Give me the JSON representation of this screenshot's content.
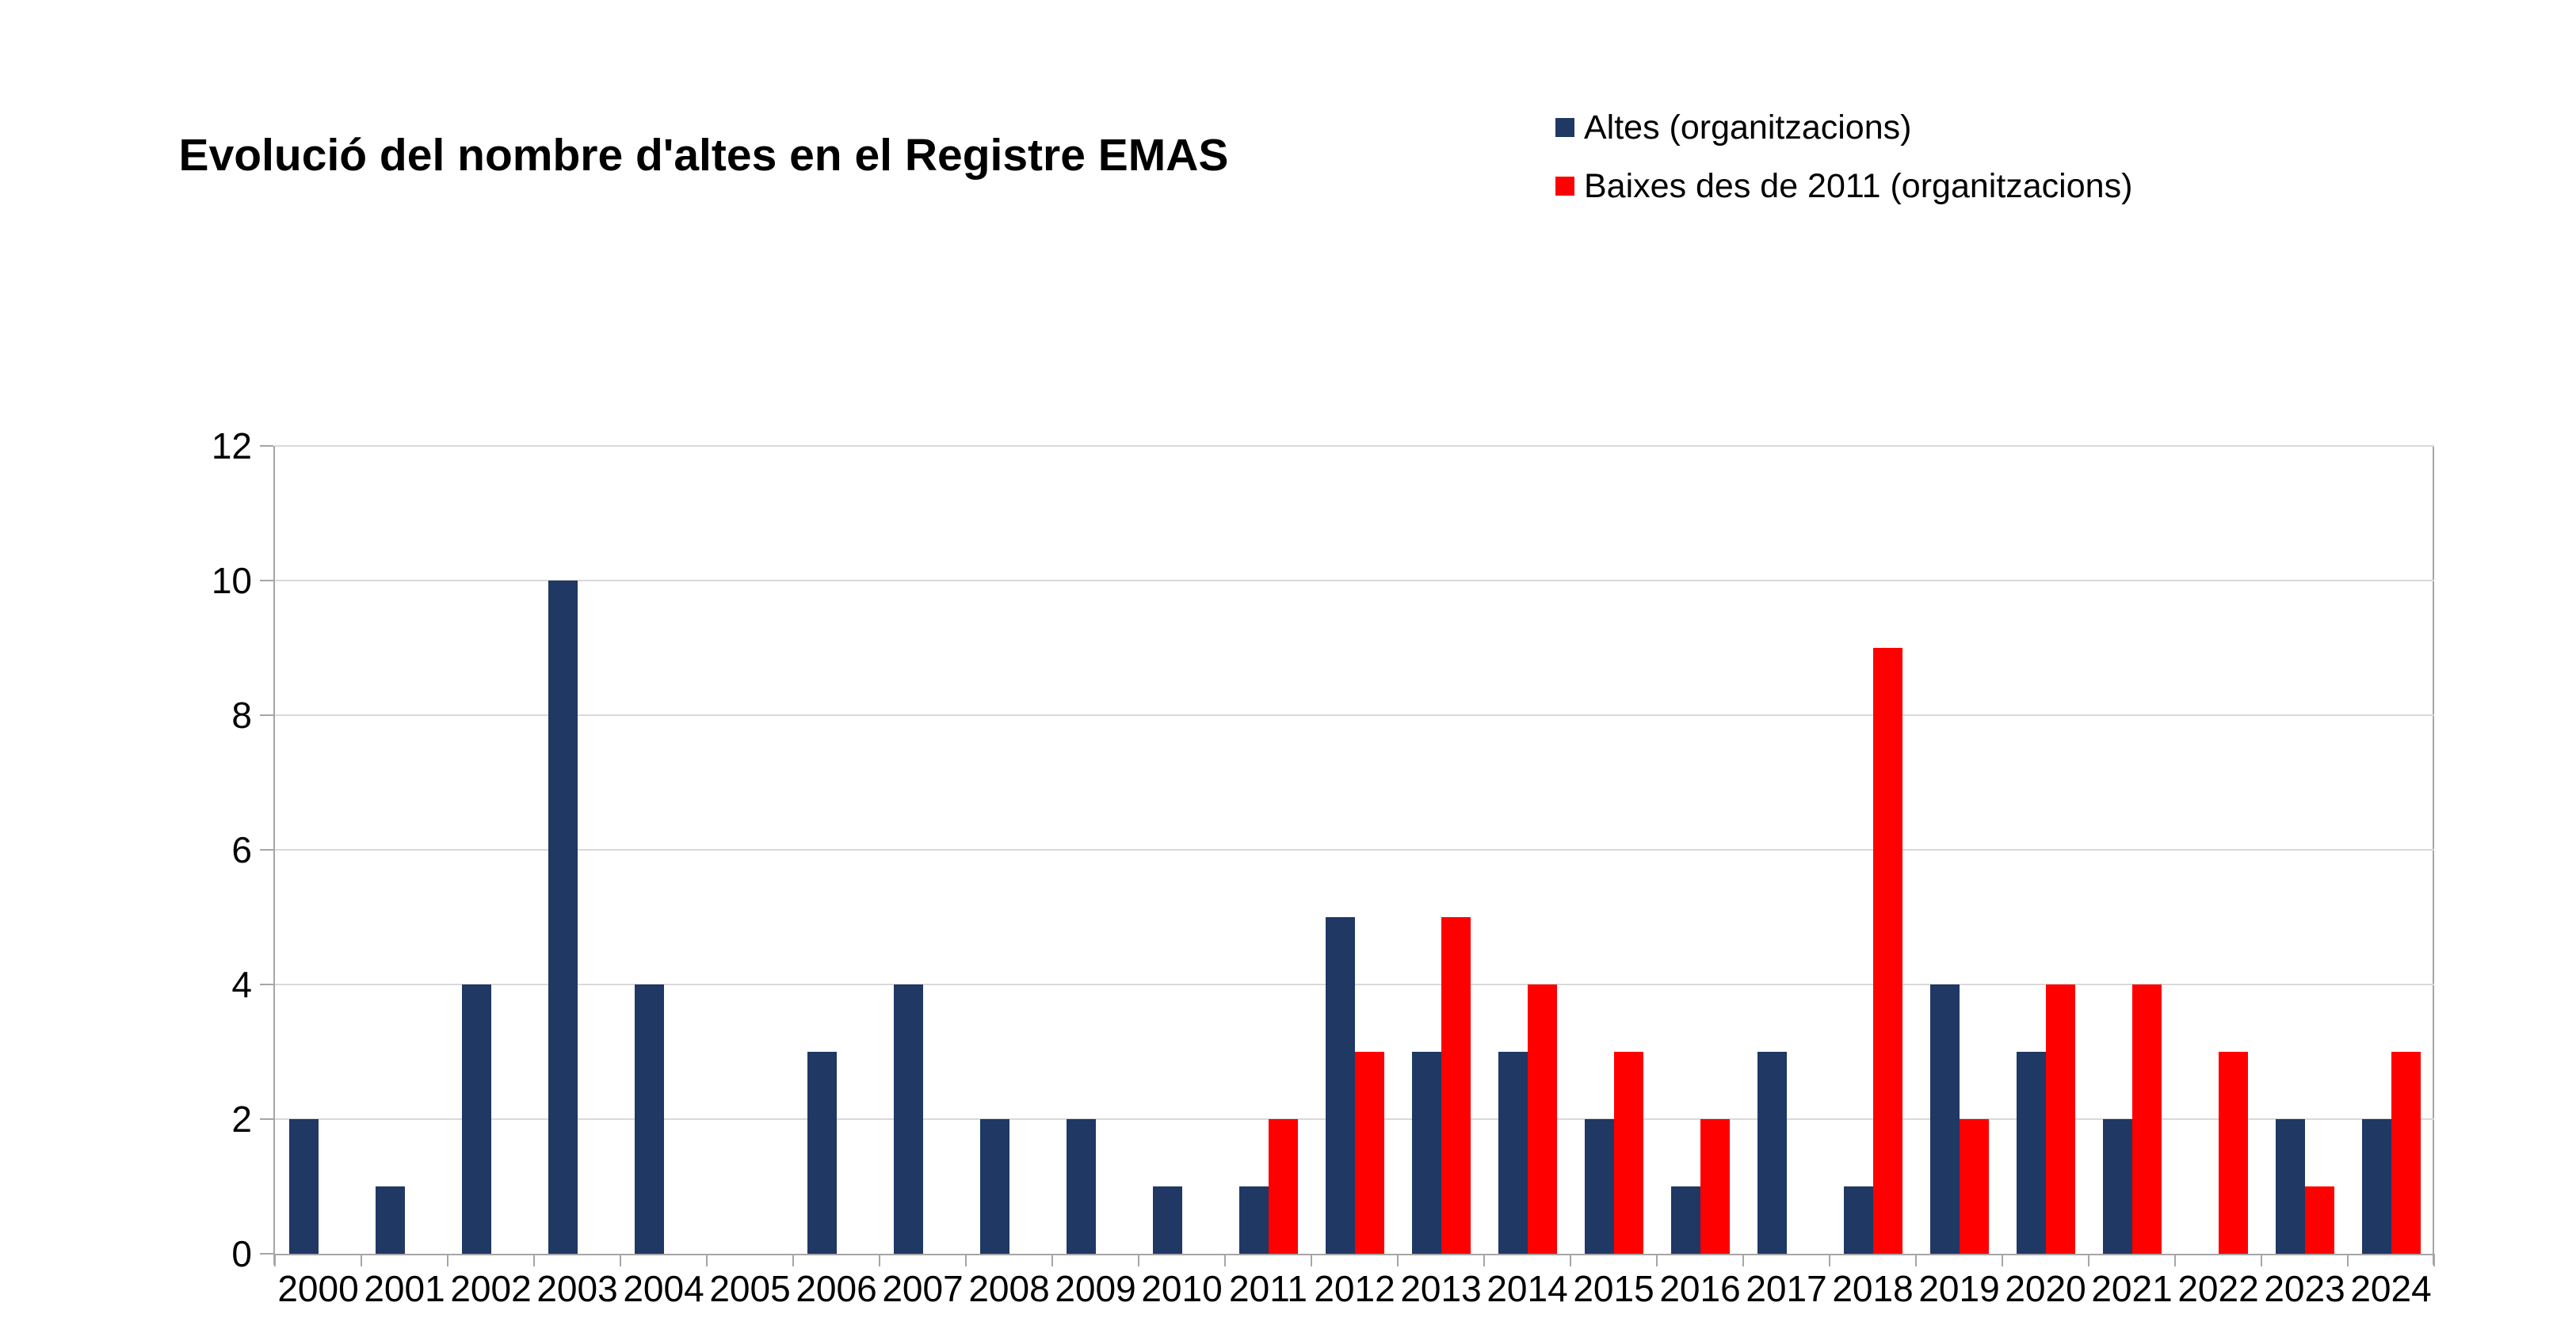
{
  "title": "Evolució del nombre d'altes en el Registre EMAS",
  "chart_data": {
    "type": "bar",
    "title": "Evolució del nombre d'altes en el Registre EMAS",
    "categories": [
      "2000",
      "2001",
      "2002",
      "2003",
      "2004",
      "2005",
      "2006",
      "2007",
      "2008",
      "2009",
      "2010",
      "2011",
      "2012",
      "2013",
      "2014",
      "2015",
      "2016",
      "2017",
      "2018",
      "2019",
      "2020",
      "2021",
      "2022",
      "2023",
      "2024"
    ],
    "series": [
      {
        "name": "Altes (organitzacions)",
        "color": "#1F3864",
        "values": [
          2,
          1,
          4,
          10,
          4,
          0,
          3,
          4,
          2,
          2,
          1,
          1,
          5,
          3,
          3,
          2,
          1,
          3,
          1,
          4,
          3,
          2,
          0,
          2,
          2
        ]
      },
      {
        "name": "Baixes des de 2011 (organitzacions)",
        "color": "#FF0000",
        "values": [
          null,
          null,
          null,
          null,
          null,
          null,
          null,
          null,
          null,
          null,
          null,
          2,
          3,
          5,
          4,
          3,
          2,
          0,
          9,
          2,
          4,
          4,
          3,
          1,
          3
        ]
      }
    ],
    "xlabel": "",
    "ylabel": "",
    "ylim": [
      0,
      12
    ],
    "yticks": [
      0,
      2,
      4,
      6,
      8,
      10,
      12
    ],
    "grid": true,
    "legend_position": "top-right",
    "colors": {
      "grid": "#D9D9D9",
      "axis": "#A6A6A6",
      "text": "#000000",
      "background": "#FFFFFF"
    }
  }
}
